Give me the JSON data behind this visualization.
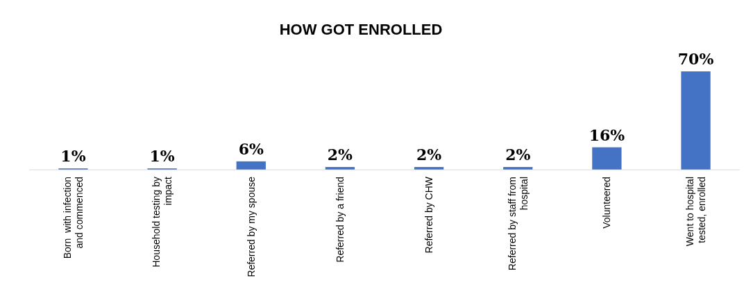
{
  "chart_data": {
    "type": "bar",
    "title": "HOW GOT ENROLLED",
    "categories": [
      "Born  with infection and commenced",
      "Household testing by impact",
      "Referred by my spouse",
      "Referred by a friend",
      "Referred by CHW",
      "Referred by staff from hospital",
      "Volunteered",
      "Went to hospital tested, enrolled"
    ],
    "values": [
      1,
      1,
      6,
      2,
      2,
      2,
      16,
      70
    ],
    "value_labels": [
      "1%",
      "1%",
      "6%",
      "2%",
      "2%",
      "2%",
      "16%",
      "70%"
    ],
    "color": "#4472c4"
  }
}
